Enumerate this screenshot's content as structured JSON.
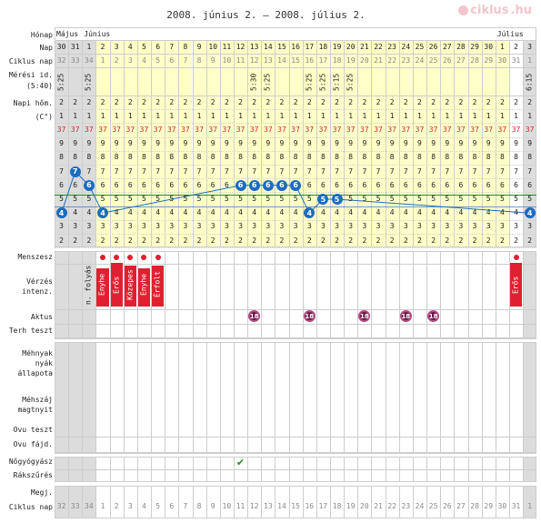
{
  "title": "2008. június 2. – 2008. július 2.",
  "logo": {
    "text": "ciklus",
    "suffix": ".hu"
  },
  "labels": {
    "honap": "Hónap",
    "nap": "Nap",
    "ciklus_nap": "Ciklus nap",
    "meresi_id": "Mérési id.",
    "meresi_id_sub": "(5:40)",
    "napi_hom": "Napi hőm.",
    "napi_hom_unit": "(C°)",
    "menszesz": "Menszesz",
    "verzes": "Vérzés",
    "verzes_sub": "intenz.",
    "aktus": "Aktus",
    "terh_teszt": "Terh teszt",
    "mehnyak_1": "Méhnyak",
    "mehnyak_2": "nyák",
    "mehnyak_3": "állapota",
    "mehszaj_1": "Méhszáj",
    "mehszaj_2": "magtnyit",
    "ovu_teszt": "Ovu teszt",
    "ovu_fajd": "Ovu fájd.",
    "nogyogyasz": "Nőgyógyász",
    "rakszures": "Rákszűrés",
    "megj": "Megj.",
    "ciklus_nap_bottom": "Ciklus nap"
  },
  "months": [
    {
      "name": "Május"
    },
    {
      "name": "Június"
    },
    {
      "name": "Július"
    }
  ],
  "days": [
    "30",
    "31",
    "1",
    "2",
    "3",
    "4",
    "5",
    "6",
    "7",
    "8",
    "9",
    "10",
    "11",
    "12",
    "13",
    "14",
    "15",
    "16",
    "17",
    "18",
    "19",
    "20",
    "21",
    "22",
    "23",
    "24",
    "25",
    "26",
    "27",
    "28",
    "29",
    "30",
    "1",
    "2",
    "3"
  ],
  "cycle_days": [
    "32",
    "33",
    "34",
    "1",
    "2",
    "3",
    "4",
    "5",
    "6",
    "7",
    "8",
    "9",
    "10",
    "11",
    "12",
    "13",
    "14",
    "15",
    "16",
    "17",
    "18",
    "19",
    "20",
    "21",
    "22",
    "23",
    "24",
    "25",
    "26",
    "27",
    "28",
    "29",
    "30",
    "31",
    "1"
  ],
  "times": [
    "5:25",
    "",
    "5:25",
    "",
    "",
    "",
    "",
    "",
    "",
    "",
    "",
    "",
    "",
    "",
    "5:30",
    "5:25",
    "",
    "",
    "5:25",
    "5:25",
    "5:15",
    "5:25",
    "",
    "",
    "",
    "",
    "",
    "",
    "",
    "",
    "",
    "",
    "",
    "",
    "6:15"
  ],
  "temp_degree_rows": [
    "2",
    "1",
    "37",
    "9",
    "8",
    "7",
    "6",
    "5",
    "4",
    "3",
    "2"
  ],
  "temperatures": [
    37.4,
    37.7,
    37.6,
    37.4,
    null,
    null,
    null,
    null,
    null,
    null,
    null,
    null,
    null,
    37.6,
    37.6,
    37.6,
    37.6,
    37.6,
    37.4,
    37.5,
    37.5,
    null,
    null,
    null,
    null,
    null,
    null,
    null,
    null,
    null,
    null,
    null,
    null,
    null,
    37.4
  ],
  "menses_days": [
    "2",
    "3",
    "4",
    "5",
    "6",
    "2"
  ],
  "bleeding": [
    {
      "day": "1",
      "text": "n. folyás",
      "kind": "text"
    },
    {
      "day": "2",
      "text": "Enyhe",
      "kind": "bar"
    },
    {
      "day": "3",
      "text": "Erős",
      "kind": "bar"
    },
    {
      "day": "4",
      "text": "Közepes",
      "kind": "bar"
    },
    {
      "day": "5",
      "text": "Enyhe",
      "kind": "bar"
    },
    {
      "day": "6",
      "text": "Érfolt",
      "kind": "bar"
    },
    {
      "day": "2",
      "text": "Erős",
      "kind": "bar"
    }
  ],
  "intercourse_days": [
    "13",
    "17",
    "21",
    "24",
    "26"
  ],
  "intercourse_icon": "no-entry-icon",
  "gyn_visit_day": "12",
  "gyn_icon": "checkmark-icon",
  "colors": {
    "grid": "#cdcdcd",
    "highlight": "#ffffc8",
    "pre_cycle": "#dcdcdc",
    "red": "#e02030",
    "blue": "#1b6bc2",
    "green": "#2a8a2a",
    "purple": "#6a1b4a",
    "mauve": "#b04a80"
  }
}
